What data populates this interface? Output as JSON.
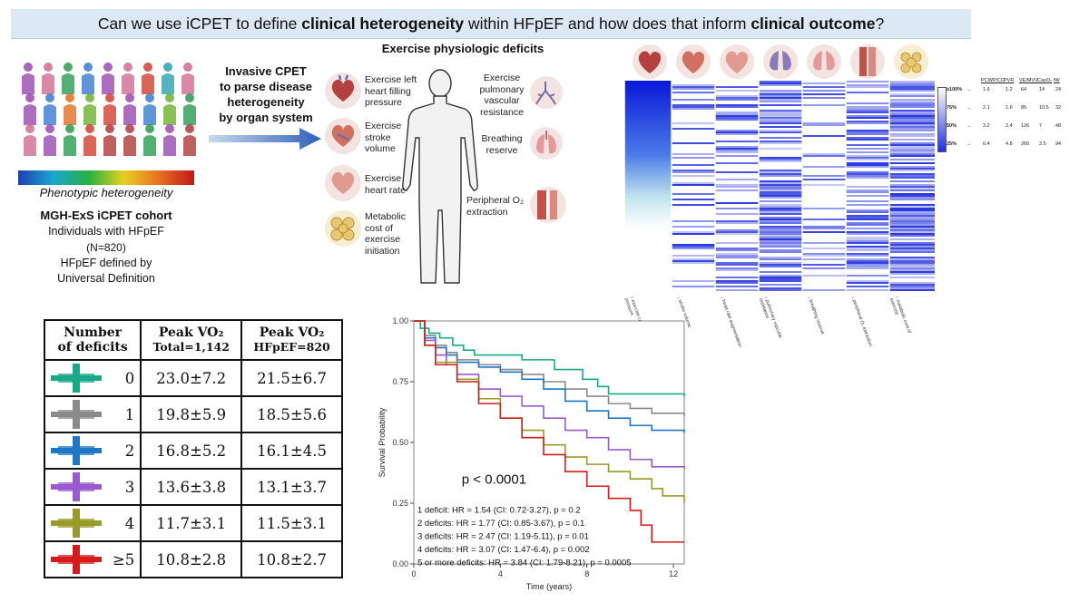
{
  "title": {
    "p1": "Can we use iCPET to define ",
    "b1": "clinical heterogeneity",
    "p2": " within HFpEF and how does that inform ",
    "b2": "clinical outcome",
    "p3": "?"
  },
  "left": {
    "gradient_label": "Phenotypic heterogeneity",
    "cohort_title": "MGH-ExS iCPET cohort",
    "line1": "Individuals with HFpEF",
    "line2": "(N=820)",
    "line3": "HFpEF defined by",
    "line4": "Universal Definition",
    "arrow_text": [
      "Invasive CPET",
      "to parse disease",
      "heterogeneity",
      "by organ system"
    ]
  },
  "deficits": {
    "heading": "Exercise physiologic deficits",
    "left_items": [
      [
        "Exercise left",
        "heart filling",
        "pressure"
      ],
      [
        "Exercise",
        "stroke",
        "volume"
      ],
      [
        "Exercise",
        "heart rate"
      ],
      [
        "Metabolic",
        "cost of",
        "exercise",
        "initiation"
      ]
    ],
    "right_items": [
      [
        "Exercise",
        "pulmonary",
        "vascular",
        "resistance"
      ],
      [
        "Breathing",
        "reserve"
      ],
      [
        "Peripheral O₂",
        "extraction"
      ]
    ]
  },
  "heatmap": {
    "columns": [
      "↑ exercise cardiac filling pressure",
      "↓ stroke volume",
      "↓ heart rate augmentation",
      "↑ pulmonary vascular resistance",
      "↓ breathing reserve",
      "↓ peripheral O₂ extraction",
      "↑ metabolic cost of exercise"
    ],
    "legend_headers": [
      "PCWP/CO",
      "PVR",
      "VE/MVV",
      "CavO₂",
      "fW"
    ],
    "legend_rows": [
      {
        "label": "≥100%",
        "values": [
          "1.6",
          "1.2",
          "64",
          "14",
          "24"
        ]
      },
      {
        "label": "75%",
        "values": [
          "2.1",
          "1.6",
          "85",
          "10.5",
          "32"
        ]
      },
      {
        "label": "50%",
        "values": [
          "3.2",
          "2.4",
          "126",
          "7",
          "48"
        ]
      },
      {
        "label": "25%",
        "values": [
          "6.4",
          "4.8",
          "260",
          "3.5",
          "94"
        ]
      }
    ]
  },
  "table": {
    "h1a": "Number",
    "h1b": "of deficits",
    "h2a": "Peak VO₂",
    "h2b": "Total=1,142",
    "h3a": "Peak VO₂",
    "h3b": "HFpEF=820",
    "rows": [
      {
        "n": "0",
        "total": "23.0±7.2",
        "hfpef": "21.5±6.7",
        "color": "#1aa88a"
      },
      {
        "n": "1",
        "total": "19.8±5.9",
        "hfpef": "18.5±5.6",
        "color": "#8a8a8a"
      },
      {
        "n": "2",
        "total": "16.8±5.2",
        "hfpef": "16.1±4.5",
        "color": "#1f77c4"
      },
      {
        "n": "3",
        "total": "13.6±3.8",
        "hfpef": "13.1±3.7",
        "color": "#9b59d0"
      },
      {
        "n": "4",
        "total": "11.7±3.1",
        "hfpef": "11.5±3.1",
        "color": "#9a9a2a"
      },
      {
        "n": "≥5",
        "total": "10.8±2.8",
        "hfpef": "10.8±2.7",
        "color": "#d41c1c"
      }
    ]
  },
  "chart_data": {
    "type": "line",
    "title": "",
    "xlabel": "Time (years)",
    "ylabel": "Survival Probability",
    "xlim": [
      0,
      12.5
    ],
    "ylim": [
      0,
      1.0
    ],
    "xticks": [
      0,
      4,
      8,
      12
    ],
    "yticks": [
      0.0,
      0.25,
      0.5,
      0.75,
      1.0
    ],
    "ytick_labels": [
      "0.00",
      "0.25",
      "0.50",
      "0.75",
      "1.00"
    ],
    "pvalue": "p < 0.0001",
    "annotations": [
      "1 deficit: HR = 1.54 (CI: 0.72-3.27), p = 0.2",
      "2 deficits: HR = 1.77 (CI: 0.85-3.67), p = 0.1",
      "3 deficits: HR = 2.47 (CI: 1.19-5.11), p = 0.01",
      "4 deficits: HR = 3.07 (CI: 1.47-6.4), p = 0.002",
      "5 or more deficits: HR = 3.84 (CI: 1.79-8.21), p = 0.0005"
    ],
    "series": [
      {
        "name": "0 deficits",
        "color": "#1aa88a",
        "points": [
          [
            0,
            1.0
          ],
          [
            0.3,
            0.97
          ],
          [
            0.7,
            0.95
          ],
          [
            1.2,
            0.93
          ],
          [
            1.8,
            0.9
          ],
          [
            2.3,
            0.88
          ],
          [
            2.8,
            0.86
          ],
          [
            4,
            0.86
          ],
          [
            5,
            0.84
          ],
          [
            6,
            0.84
          ],
          [
            6.5,
            0.8
          ],
          [
            7,
            0.8
          ],
          [
            7.8,
            0.76
          ],
          [
            8.5,
            0.73
          ],
          [
            9,
            0.7
          ],
          [
            12.5,
            0.69
          ]
        ]
      },
      {
        "name": "1 deficit",
        "color": "#8a8a8a",
        "points": [
          [
            0,
            1.0
          ],
          [
            0.5,
            0.94
          ],
          [
            1,
            0.9
          ],
          [
            1.5,
            0.87
          ],
          [
            2,
            0.84
          ],
          [
            3,
            0.82
          ],
          [
            4,
            0.8
          ],
          [
            5,
            0.78
          ],
          [
            6,
            0.75
          ],
          [
            7,
            0.72
          ],
          [
            8,
            0.69
          ],
          [
            9,
            0.66
          ],
          [
            10,
            0.64
          ],
          [
            11,
            0.62
          ],
          [
            12.5,
            0.61
          ]
        ]
      },
      {
        "name": "2 deficits",
        "color": "#1f77c4",
        "points": [
          [
            0,
            1.0
          ],
          [
            0.5,
            0.93
          ],
          [
            1,
            0.89
          ],
          [
            1.5,
            0.86
          ],
          [
            2,
            0.83
          ],
          [
            3,
            0.81
          ],
          [
            4,
            0.79
          ],
          [
            5,
            0.76
          ],
          [
            6,
            0.72
          ],
          [
            7,
            0.67
          ],
          [
            8,
            0.63
          ],
          [
            9,
            0.6
          ],
          [
            10,
            0.57
          ],
          [
            11,
            0.55
          ],
          [
            12.5,
            0.54
          ]
        ]
      },
      {
        "name": "3 deficits",
        "color": "#9b59d0",
        "points": [
          [
            0,
            1.0
          ],
          [
            0.5,
            0.92
          ],
          [
            1,
            0.86
          ],
          [
            1.5,
            0.82
          ],
          [
            2,
            0.78
          ],
          [
            3,
            0.72
          ],
          [
            4,
            0.69
          ],
          [
            5,
            0.65
          ],
          [
            6,
            0.6
          ],
          [
            7,
            0.55
          ],
          [
            8,
            0.52
          ],
          [
            9,
            0.47
          ],
          [
            10,
            0.43
          ],
          [
            11,
            0.4
          ],
          [
            12.5,
            0.39
          ]
        ]
      },
      {
        "name": "4 deficits",
        "color": "#9a9a2a",
        "points": [
          [
            0,
            1.0
          ],
          [
            0.5,
            0.9
          ],
          [
            1,
            0.83
          ],
          [
            2,
            0.76
          ],
          [
            3,
            0.68
          ],
          [
            4,
            0.6
          ],
          [
            5,
            0.55
          ],
          [
            6,
            0.49
          ],
          [
            7,
            0.44
          ],
          [
            8,
            0.41
          ],
          [
            9,
            0.38
          ],
          [
            10,
            0.35
          ],
          [
            11,
            0.31
          ],
          [
            11.5,
            0.28
          ],
          [
            12.5,
            0.25
          ]
        ]
      },
      {
        "name": "5 or more deficits",
        "color": "#d41c1c",
        "points": [
          [
            0,
            1.0
          ],
          [
            0.5,
            0.9
          ],
          [
            1,
            0.82
          ],
          [
            2,
            0.75
          ],
          [
            3,
            0.66
          ],
          [
            4,
            0.6
          ],
          [
            5,
            0.52
          ],
          [
            6,
            0.45
          ],
          [
            7,
            0.38
          ],
          [
            8,
            0.32
          ],
          [
            9,
            0.27
          ],
          [
            10,
            0.22
          ],
          [
            10.5,
            0.16
          ],
          [
            11,
            0.09
          ],
          [
            12.5,
            0.09
          ]
        ]
      }
    ]
  }
}
